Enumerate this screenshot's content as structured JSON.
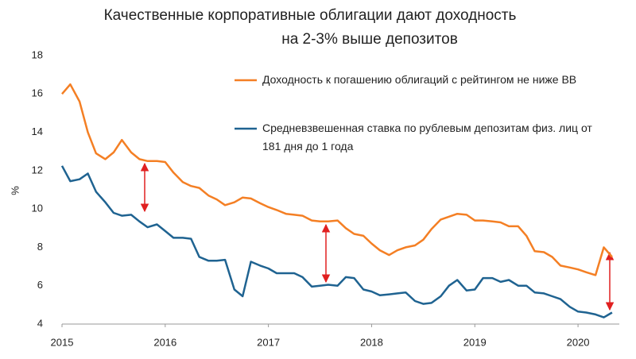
{
  "chart_data": {
    "type": "line",
    "title": [
      "Качественные корпоративные облигации дают доходность",
      "на 2-3% выше депозитов"
    ],
    "ylabel": "%",
    "x": [
      2015,
      2015.08,
      2015.17,
      2015.25,
      2015.33,
      2015.42,
      2015.5,
      2015.58,
      2015.67,
      2015.75,
      2015.83,
      2015.92,
      2016,
      2016.08,
      2016.17,
      2016.25,
      2016.33,
      2016.42,
      2016.5,
      2016.58,
      2016.67,
      2016.75,
      2016.83,
      2016.92,
      2017,
      2017.08,
      2017.17,
      2017.25,
      2017.33,
      2017.42,
      2017.5,
      2017.58,
      2017.67,
      2017.75,
      2017.83,
      2017.92,
      2018,
      2018.08,
      2018.17,
      2018.25,
      2018.33,
      2018.42,
      2018.5,
      2018.58,
      2018.67,
      2018.75,
      2018.83,
      2018.92,
      2019,
      2019.08,
      2019.17,
      2019.25,
      2019.33,
      2019.42,
      2019.5,
      2019.58,
      2019.67,
      2019.75,
      2019.83,
      2019.92,
      2020,
      2020.08,
      2020.17,
      2020.25,
      2020.33
    ],
    "series": [
      {
        "name": "Доходность к погашению облигаций с рейтингом не ниже ВВ",
        "color": "#f47f24",
        "values": [
          16.0,
          16.5,
          15.6,
          14.0,
          12.9,
          12.6,
          12.95,
          13.6,
          12.95,
          12.6,
          12.5,
          12.5,
          12.45,
          11.9,
          11.4,
          11.2,
          11.1,
          10.7,
          10.5,
          10.2,
          10.35,
          10.6,
          10.55,
          10.3,
          10.1,
          9.95,
          9.75,
          9.7,
          9.65,
          9.4,
          9.35,
          9.35,
          9.4,
          9.0,
          8.7,
          8.6,
          8.2,
          7.85,
          7.6,
          7.85,
          8.0,
          8.1,
          8.4,
          8.95,
          9.45,
          9.6,
          9.75,
          9.7,
          9.4,
          9.4,
          9.35,
          9.3,
          9.1,
          9.1,
          8.6,
          7.8,
          7.75,
          7.5,
          7.05,
          6.95,
          6.85,
          6.7,
          6.55,
          8.0,
          7.5
        ]
      },
      {
        "name": "Средневзвешенная ставка по рублевым депозитам физ. лиц от 181 дня до 1 года",
        "color": "#1f6391",
        "values": [
          12.25,
          11.45,
          11.55,
          11.85,
          10.9,
          10.35,
          9.8,
          9.65,
          9.7,
          9.35,
          9.05,
          9.2,
          8.85,
          8.5,
          8.5,
          8.45,
          7.5,
          7.3,
          7.3,
          7.35,
          5.8,
          5.45,
          7.25,
          7.05,
          6.9,
          6.65,
          6.65,
          6.65,
          6.45,
          5.95,
          6.0,
          6.05,
          6.0,
          6.45,
          6.4,
          5.8,
          5.7,
          5.5,
          5.55,
          5.6,
          5.65,
          5.2,
          5.05,
          5.1,
          5.45,
          6.0,
          6.3,
          5.75,
          5.8,
          6.4,
          6.4,
          6.2,
          6.3,
          6.0,
          6.0,
          5.65,
          5.6,
          5.45,
          5.3,
          4.9,
          4.65,
          4.6,
          4.5,
          4.35,
          4.6
        ]
      }
    ],
    "xlim": [
      2015,
      2020.4
    ],
    "xticks": [
      2015,
      2016,
      2017,
      2018,
      2019,
      2020
    ],
    "ylim": [
      4,
      18
    ],
    "yticks": [
      4,
      6,
      8,
      10,
      12,
      14,
      16,
      18
    ],
    "grid": false
  }
}
